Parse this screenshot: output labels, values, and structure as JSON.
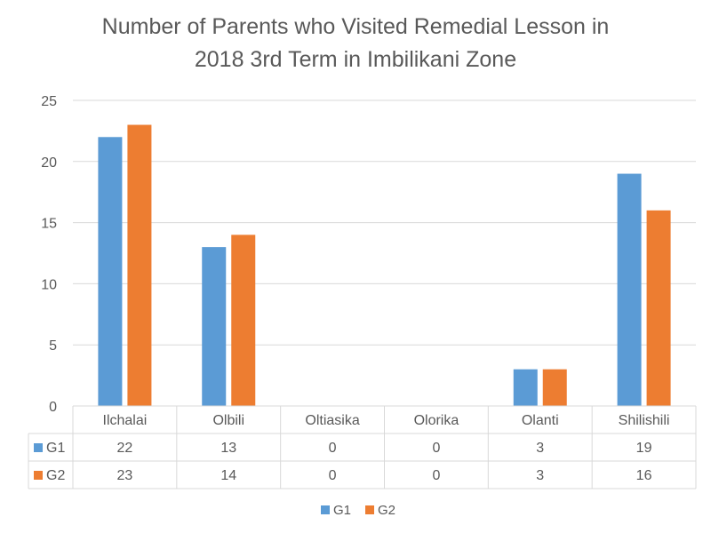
{
  "chart_data": {
    "type": "bar",
    "title": "Number of Parents who Visited Remedial Lesson in 2018 3rd Term in Imbilikani Zone",
    "title_lines": [
      "Number of Parents who Visited Remedial Lesson in",
      "2018 3rd Term in Imbilikani Zone"
    ],
    "categories": [
      "Ilchalai",
      "Olbili",
      "Oltiasika",
      "Olorika",
      "Olanti",
      "Shilishili"
    ],
    "series": [
      {
        "name": "G1",
        "values": [
          22,
          13,
          0,
          0,
          3,
          19
        ],
        "color": "#5B9BD5"
      },
      {
        "name": "G2",
        "values": [
          23,
          14,
          0,
          0,
          3,
          16
        ],
        "color": "#ED7D31"
      }
    ],
    "ylim": [
      0,
      25
    ],
    "yticks": [
      0,
      5,
      10,
      15,
      20,
      25
    ],
    "grid": true,
    "legend": "bottom",
    "data_table": true
  }
}
